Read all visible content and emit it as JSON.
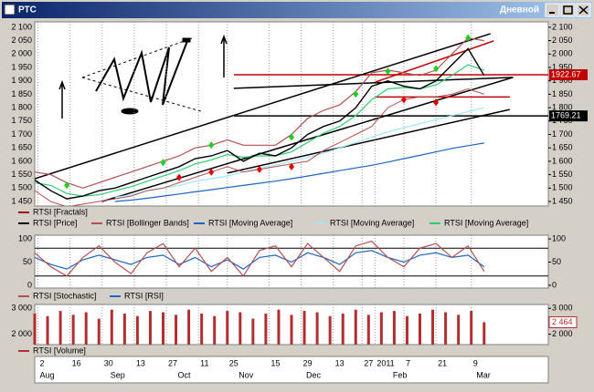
{
  "window": {
    "title": "РТС",
    "timeframe": "Дневной"
  },
  "chart_data": [
    {
      "type": "line",
      "xlim": [
        0,
        160
      ],
      "ylim": [
        1433,
        2120
      ],
      "yticks": [
        {
          "value": 1450,
          "label": "1 450"
        },
        {
          "value": 1500,
          "label": "1 500"
        },
        {
          "value": 1550,
          "label": "1 550"
        },
        {
          "value": 1600,
          "label": "1 600"
        },
        {
          "value": 1650,
          "label": "1 650"
        },
        {
          "value": 1700,
          "label": "1 700"
        },
        {
          "value": 1750,
          "label": "1 750"
        },
        {
          "value": 1800,
          "label": "1 800"
        },
        {
          "value": 1850,
          "label": "1 850"
        },
        {
          "value": 1900,
          "label": "1 900"
        },
        {
          "value": 1950,
          "label": "1 950"
        },
        {
          "value": 2000,
          "label": "2 000"
        },
        {
          "value": 2050,
          "label": "2 050"
        },
        {
          "value": 2100,
          "label": "2 100"
        }
      ],
      "x": [
        0,
        5,
        10,
        15,
        20,
        25,
        30,
        35,
        40,
        45,
        50,
        55,
        60,
        65,
        70,
        75,
        80,
        85,
        90,
        95,
        100,
        105,
        110,
        115,
        120,
        125,
        130,
        135,
        140
      ],
      "fractals": {
        "name": "RTSI [Fractals]",
        "color": "#a01010",
        "up_color": "#22cc22",
        "down_color": "#dd0000",
        "up": {
          "x": [
            10,
            40,
            55,
            80,
            100,
            110,
            125,
            135
          ],
          "values": [
            1490,
            1575,
            1640,
            1670,
            1830,
            1915,
            1925,
            2040
          ]
        },
        "down": {
          "x": [
            45,
            55,
            70,
            80,
            115,
            125
          ],
          "values": [
            1560,
            1580,
            1590,
            1600,
            1850,
            1840
          ]
        }
      },
      "series": [
        {
          "name": "RTSI [Price]",
          "color": "#000000",
          "values": [
            1530,
            1490,
            1460,
            1470,
            1490,
            1500,
            1520,
            1540,
            1560,
            1580,
            1610,
            1620,
            1640,
            1600,
            1630,
            1620,
            1650,
            1700,
            1730,
            1750,
            1800,
            1880,
            1900,
            1880,
            1870,
            1900,
            1960,
            2020,
            1920
          ]
        },
        {
          "name": "RTSI [Bollinger Bands]",
          "color": "#b05050",
          "values": [
            1560,
            1550,
            1520,
            1500,
            1520,
            1540,
            1560,
            1580,
            1600,
            1620,
            1650,
            1660,
            1680,
            1660,
            1660,
            1660,
            1700,
            1760,
            1790,
            1810,
            1860,
            1930,
            1940,
            1930,
            1920,
            1940,
            2000,
            2060,
            2050
          ],
          "lower": [
            1490,
            1450,
            1430,
            1440,
            1450,
            1460,
            1470,
            1490,
            1500,
            1520,
            1540,
            1560,
            1580,
            1560,
            1570,
            1580,
            1590,
            1600,
            1640,
            1670,
            1700,
            1730,
            1800,
            1830,
            1840,
            1840,
            1850,
            1870,
            1850
          ]
        },
        {
          "name": "RTSI [Moving Average]",
          "color": "#1e64c8",
          "values": [
            null,
            null,
            null,
            null,
            null,
            1450,
            1455,
            1462,
            1470,
            1478,
            1486,
            1494,
            1502,
            1510,
            1518,
            1526,
            1535,
            1545,
            1555,
            1565,
            1575,
            1585,
            1597,
            1610,
            1622,
            1635,
            1648,
            1658,
            1668
          ]
        },
        {
          "name": "RTSI [Moving Average]",
          "color": "#9fe8f8",
          "values": [
            null,
            null,
            null,
            null,
            null,
            1465,
            1475,
            1490,
            1500,
            1510,
            1525,
            1535,
            1545,
            1560,
            1575,
            1585,
            1600,
            1615,
            1630,
            1650,
            1670,
            1690,
            1710,
            1725,
            1740,
            1755,
            1770,
            1785,
            1800
          ]
        },
        {
          "name": "RTSI [Moving Average]",
          "color": "#2ecc71",
          "values": [
            1520,
            1510,
            1480,
            1470,
            1475,
            1490,
            1505,
            1525,
            1545,
            1565,
            1590,
            1605,
            1625,
            1615,
            1620,
            1620,
            1635,
            1670,
            1705,
            1730,
            1770,
            1830,
            1870,
            1875,
            1870,
            1885,
            1920,
            1960,
            1940
          ]
        }
      ],
      "trendlines": [
        {
          "color": "#000000",
          "x": [
            0,
            142
          ],
          "values": [
            1535,
            2076
          ]
        },
        {
          "color": "#000000",
          "x": [
            21,
            149
          ],
          "values": [
            1450,
            1913
          ]
        },
        {
          "color": "#000000",
          "x": [
            60,
            148
          ],
          "values": [
            1556,
            1793
          ]
        },
        {
          "color": "#000000",
          "x": [
            62,
            149
          ],
          "values": [
            1872,
            1913
          ]
        },
        {
          "color": "#c00000",
          "x": [
            106,
            143
          ],
          "values": [
            1895,
            2049
          ]
        },
        {
          "color": "#c00000",
          "x": [
            106,
            148
          ],
          "values": [
            1840,
            1840
          ]
        }
      ],
      "levels": [
        {
          "value": 1922.67,
          "color": "#c00000"
        },
        {
          "value": 1769.21,
          "color": "#000000"
        }
      ]
    },
    {
      "type": "line",
      "xlim": [
        0,
        160
      ],
      "ylim": [
        -6,
        108
      ],
      "yticks": [
        0,
        50,
        100
      ],
      "levels": [
        20,
        80
      ],
      "x": [
        0,
        5,
        10,
        15,
        20,
        25,
        30,
        35,
        40,
        45,
        50,
        55,
        60,
        65,
        70,
        75,
        80,
        85,
        90,
        95,
        100,
        105,
        110,
        115,
        120,
        125,
        130,
        135,
        140
      ],
      "series": [
        {
          "name": "RTSI [Stochastic]",
          "color": "#b05050",
          "values": [
            70,
            40,
            20,
            60,
            85,
            50,
            25,
            70,
            90,
            40,
            80,
            30,
            60,
            20,
            75,
            85,
            40,
            90,
            60,
            30,
            85,
            95,
            60,
            40,
            80,
            90,
            60,
            85,
            30
          ]
        },
        {
          "name": "RTSI [RSI]",
          "color": "#1e64c8",
          "values": [
            60,
            45,
            35,
            55,
            65,
            55,
            45,
            60,
            65,
            45,
            60,
            40,
            55,
            35,
            60,
            65,
            50,
            70,
            60,
            45,
            70,
            75,
            60,
            50,
            65,
            70,
            60,
            65,
            40
          ]
        }
      ]
    },
    {
      "type": "bar",
      "xlim": [
        0,
        160
      ],
      "ylim": [
        1600,
        3150
      ],
      "yticks": [
        {
          "value": 2000,
          "label": "2 000"
        },
        {
          "value": 3000,
          "label": "3 000"
        }
      ],
      "name": "RTSI [Volume]",
      "color": "#b03030",
      "x": [
        0,
        4,
        8,
        12,
        16,
        20,
        24,
        28,
        32,
        36,
        40,
        44,
        48,
        52,
        56,
        60,
        64,
        68,
        72,
        76,
        80,
        84,
        88,
        92,
        96,
        100,
        104,
        108,
        112,
        116,
        120,
        124,
        128,
        132,
        136,
        140
      ],
      "values": [
        2800,
        2700,
        2900,
        2750,
        2850,
        2600,
        2950,
        2800,
        2700,
        2900,
        2850,
        2750,
        2950,
        2800,
        2700,
        2900,
        2850,
        2600,
        2800,
        2950,
        2750,
        2900,
        2850,
        2700,
        2800,
        2950,
        2750,
        2850,
        2900,
        2700,
        2800,
        2950,
        2850,
        2750,
        2900,
        2464
      ],
      "current": {
        "value": 2464,
        "label": "2 464"
      },
      "xticks": [
        {
          "value": 1,
          "label": "2"
        },
        {
          "value": 11,
          "label": "16"
        },
        {
          "value": 21,
          "label": "30"
        },
        {
          "value": 31,
          "label": "13"
        },
        {
          "value": 41,
          "label": "27"
        },
        {
          "value": 51,
          "label": "11"
        },
        {
          "value": 60,
          "label": "25"
        },
        {
          "value": 73,
          "label": "15"
        },
        {
          "value": 83,
          "label": "29"
        },
        {
          "value": 93,
          "label": "13"
        },
        {
          "value": 102,
          "label": "27"
        },
        {
          "value": 106,
          "label": "2011"
        },
        {
          "value": 115,
          "label": "7"
        },
        {
          "value": 125,
          "label": "21"
        },
        {
          "value": 136,
          "label": "9"
        }
      ],
      "month_ticks": [
        {
          "value": 1,
          "label": "Aug"
        },
        {
          "value": 23,
          "label": "Sep"
        },
        {
          "value": 44,
          "label": "Oct"
        },
        {
          "value": 63,
          "label": "Nov"
        },
        {
          "value": 84,
          "label": "Dec"
        },
        {
          "value": 111,
          "label": "Feb"
        },
        {
          "value": 137,
          "label": "Mar"
        }
      ]
    }
  ]
}
